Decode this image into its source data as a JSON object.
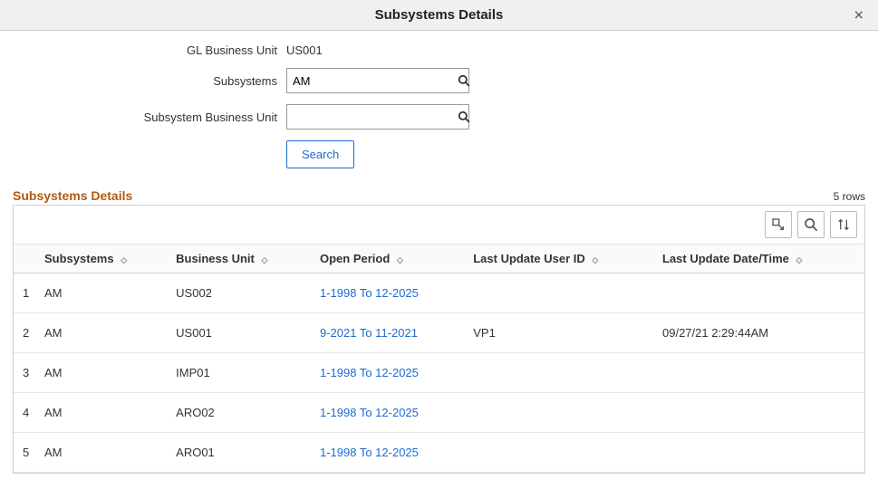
{
  "header": {
    "title": "Subsystems Details"
  },
  "form": {
    "gl_business_unit_label": "GL Business Unit",
    "gl_business_unit_value": "US001",
    "subsystems_label": "Subsystems",
    "subsystems_value": "AM",
    "sub_bu_label": "Subsystem Business Unit",
    "sub_bu_value": "",
    "search_label": "Search"
  },
  "grid": {
    "section_title": "Subsystems Details",
    "row_count_text": "5 rows",
    "columns": {
      "subsystems": "Subsystems",
      "business_unit": "Business Unit",
      "open_period": "Open Period",
      "last_update_user": "Last Update User ID",
      "last_update_datetime": "Last Update Date/Time"
    },
    "rows": [
      {
        "n": "1",
        "subsystem": "AM",
        "bu": "US002",
        "open_period": "1-1998 To 12-2025",
        "user": "",
        "dt": ""
      },
      {
        "n": "2",
        "subsystem": "AM",
        "bu": "US001",
        "open_period": "9-2021 To 11-2021",
        "user": "VP1",
        "dt": "09/27/21  2:29:44AM"
      },
      {
        "n": "3",
        "subsystem": "AM",
        "bu": "IMP01",
        "open_period": "1-1998 To 12-2025",
        "user": "",
        "dt": ""
      },
      {
        "n": "4",
        "subsystem": "AM",
        "bu": "ARO02",
        "open_period": "1-1998 To 12-2025",
        "user": "",
        "dt": ""
      },
      {
        "n": "5",
        "subsystem": "AM",
        "bu": "ARO01",
        "open_period": "1-1998 To 12-2025",
        "user": "",
        "dt": ""
      }
    ]
  }
}
